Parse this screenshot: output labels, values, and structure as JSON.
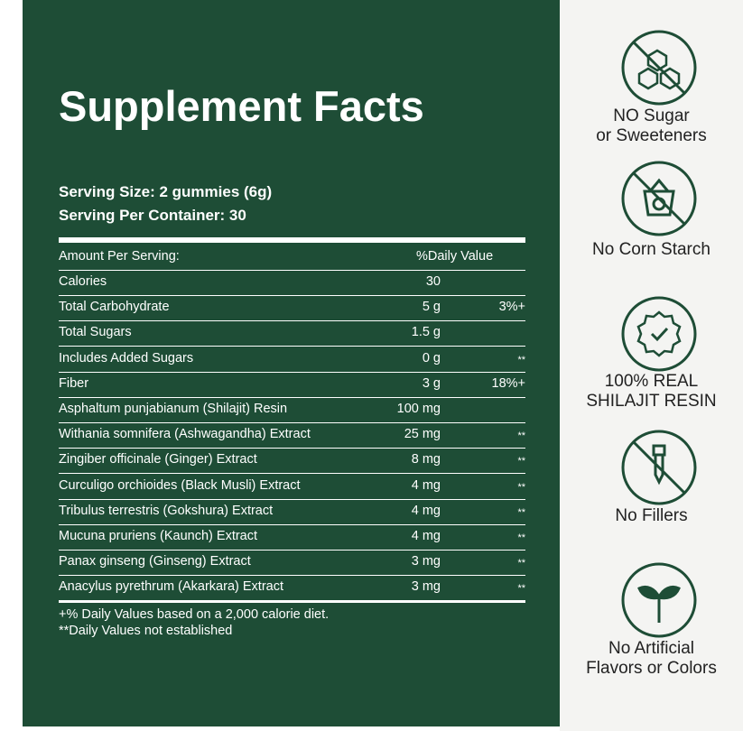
{
  "panel": {
    "title": "Supplement Facts",
    "serving_size": "Serving Size: 2 gummies (6g)",
    "servings_per_container": "Serving Per Container: 30",
    "table": {
      "header": {
        "label": "Amount Per Serving:",
        "dv": "%Daily Value"
      },
      "rows": [
        {
          "name": "Calories",
          "amount": "30"
        },
        {
          "name": "Total Carbohydrate",
          "amount": "5 g",
          "dv": "3%+"
        },
        {
          "name": "Total Sugars",
          "amount": "1.5 g"
        },
        {
          "name": "Includes Added Sugars",
          "amount": "0 g",
          "dv": "**"
        },
        {
          "name": "Fiber",
          "amount": "3 g",
          "dv": "18%+"
        },
        {
          "name": "Asphaltum punjabianum (Shilajit) Resin",
          "amount": "100 mg"
        },
        {
          "name": "Withania somnifera (Ashwagandha) Extract",
          "amount": "25 mg",
          "dv": "**"
        },
        {
          "name": "Zingiber officinale (Ginger) Extract",
          "amount": "8 mg",
          "dv": "**"
        },
        {
          "name": "Curculigo orchioides (Black Musli) Extract",
          "amount": "4 mg",
          "dv": "**"
        },
        {
          "name": "Tribulus terrestris (Gokshura) Extract",
          "amount": "4 mg",
          "dv": "**"
        },
        {
          "name": "Mucuna pruriens (Kaunch) Extract",
          "amount": "4 mg",
          "dv": "**"
        },
        {
          "name": "Panax ginseng (Ginseng) Extract",
          "amount": "3 mg",
          "dv": "**"
        },
        {
          "name": "Anacylus pyrethrum (Akarkara) Extract",
          "amount": "3 mg",
          "dv": "**"
        }
      ]
    },
    "footnotes": [
      "+% Daily Values based on a 2,000 calorie diet.",
      "**Daily Values not established"
    ]
  },
  "badges": [
    {
      "lines": [
        "NO Sugar",
        "or Sweeteners"
      ]
    },
    {
      "lines": [
        "No Corn Starch"
      ]
    },
    {
      "lines": [
        "100% REAL",
        "SHILAJIT RESIN"
      ]
    },
    {
      "lines": [
        "No Fillers"
      ]
    },
    {
      "lines": [
        "No Artificial",
        "Flavors or Colors"
      ]
    }
  ]
}
